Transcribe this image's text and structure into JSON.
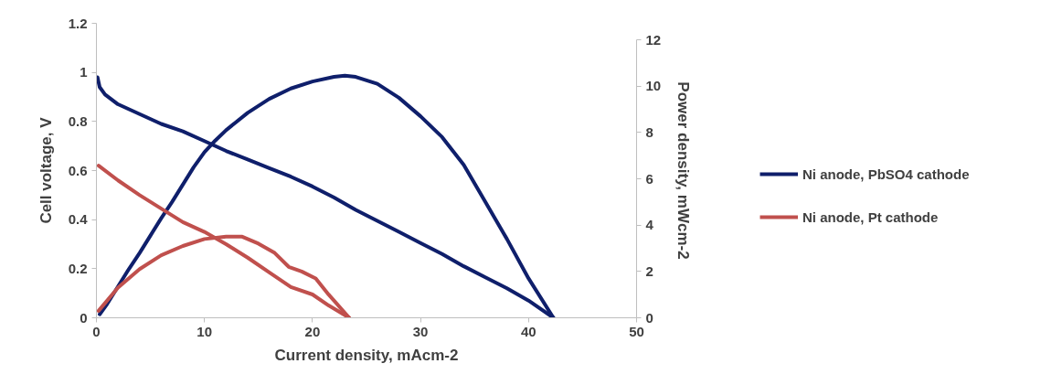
{
  "chart_data": {
    "type": "line",
    "xlabel": "Current density, mAcm-2",
    "ylabel": "Cell voltage, V",
    "y2label": "Power density, mWcm-2",
    "xlim": [
      0,
      50
    ],
    "xticks": [
      0,
      10,
      20,
      30,
      40,
      50
    ],
    "ylim": [
      0,
      1.2
    ],
    "yticks": [
      0,
      0.2,
      0.4,
      0.6,
      0.8,
      1,
      1.2
    ],
    "y2lim": [
      0,
      12
    ],
    "y2ticks": [
      0,
      2,
      4,
      6,
      8,
      10,
      12
    ],
    "grid": false,
    "legend": "right",
    "series": [
      {
        "name": "Ni anode, PbSO4 cathode",
        "color": "#0f1f6b",
        "x": [
          0.1,
          0.3,
          0.8,
          2,
          4,
          6,
          8,
          10,
          12,
          14,
          16,
          18,
          20,
          22,
          24,
          26,
          28,
          30,
          32,
          34,
          36,
          38,
          40,
          42.3
        ],
        "values": [
          0.98,
          0.94,
          0.91,
          0.87,
          0.83,
          0.79,
          0.76,
          0.72,
          0.68,
          0.645,
          0.61,
          0.575,
          0.535,
          0.49,
          0.44,
          0.395,
          0.35,
          0.305,
          0.26,
          0.21,
          0.165,
          0.12,
          0.07,
          0.0
        ]
      },
      {
        "color": "#0f1f6b",
        "axis": "y2",
        "x": [
          0.3,
          1,
          2,
          3,
          4,
          5,
          6,
          7,
          8,
          9,
          10,
          11,
          12,
          14,
          16,
          18,
          20,
          22,
          23,
          24,
          26,
          28,
          30,
          32,
          34,
          36,
          38,
          40,
          42.3
        ],
        "values": [
          0.15,
          0.6,
          1.35,
          2.1,
          2.8,
          3.55,
          4.3,
          5.0,
          5.75,
          6.5,
          7.15,
          7.65,
          8.1,
          8.85,
          9.45,
          9.9,
          10.2,
          10.4,
          10.45,
          10.4,
          10.1,
          9.5,
          8.7,
          7.8,
          6.6,
          5.0,
          3.4,
          1.7,
          0.0
        ]
      },
      {
        "name": "Ni anode, Pt cathode",
        "color": "#c0504d",
        "x": [
          0.2,
          2,
          4,
          6,
          8,
          10,
          12,
          14,
          16,
          18,
          20,
          21.5,
          23.4
        ],
        "values": [
          0.62,
          0.56,
          0.5,
          0.445,
          0.39,
          0.35,
          0.3,
          0.245,
          0.185,
          0.125,
          0.095,
          0.05,
          0.0
        ]
      },
      {
        "color": "#c0504d",
        "axis": "y2",
        "x": [
          0.2,
          2,
          4,
          6,
          8,
          10,
          12,
          13.5,
          15,
          16.5,
          17.8,
          19,
          20.3,
          21.5,
          23.4
        ],
        "values": [
          0.3,
          1.3,
          2.1,
          2.7,
          3.1,
          3.4,
          3.5,
          3.5,
          3.2,
          2.8,
          2.2,
          2.0,
          1.7,
          1.0,
          0.0
        ]
      }
    ]
  }
}
